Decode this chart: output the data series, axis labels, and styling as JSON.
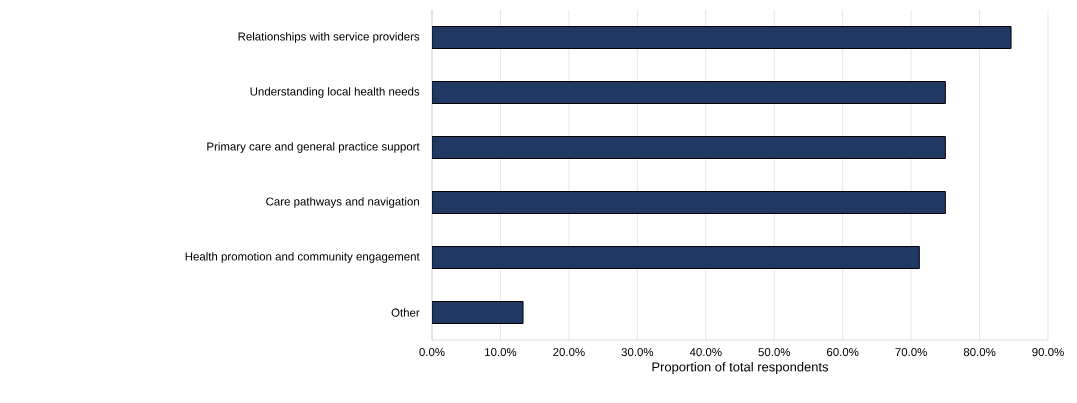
{
  "chart_data": {
    "type": "bar",
    "orientation": "horizontal",
    "xlabel": "Proportion of total respondents",
    "categories": [
      "Relationships with service providers",
      "Understanding local health needs",
      "Primary care and general practice support",
      "Care pathways and navigation",
      "Health promotion and community engagement",
      "Other"
    ],
    "values": [
      84.6,
      75.0,
      75.0,
      75.0,
      71.2,
      13.3
    ],
    "color": "#203864",
    "xlim": [
      0,
      90
    ],
    "xticks": [
      {
        "value": 0,
        "label": "0.0%"
      },
      {
        "value": 10,
        "label": "10.0%"
      },
      {
        "value": 20,
        "label": "20.0%"
      },
      {
        "value": 30,
        "label": "30.0%"
      },
      {
        "value": 40,
        "label": "40.0%"
      },
      {
        "value": 50,
        "label": "50.0%"
      },
      {
        "value": 60,
        "label": "60.0%"
      },
      {
        "value": 70,
        "label": "70.0%"
      },
      {
        "value": 80,
        "label": "80.0%"
      },
      {
        "value": 90,
        "label": "90.0%"
      }
    ],
    "grid": "x"
  }
}
